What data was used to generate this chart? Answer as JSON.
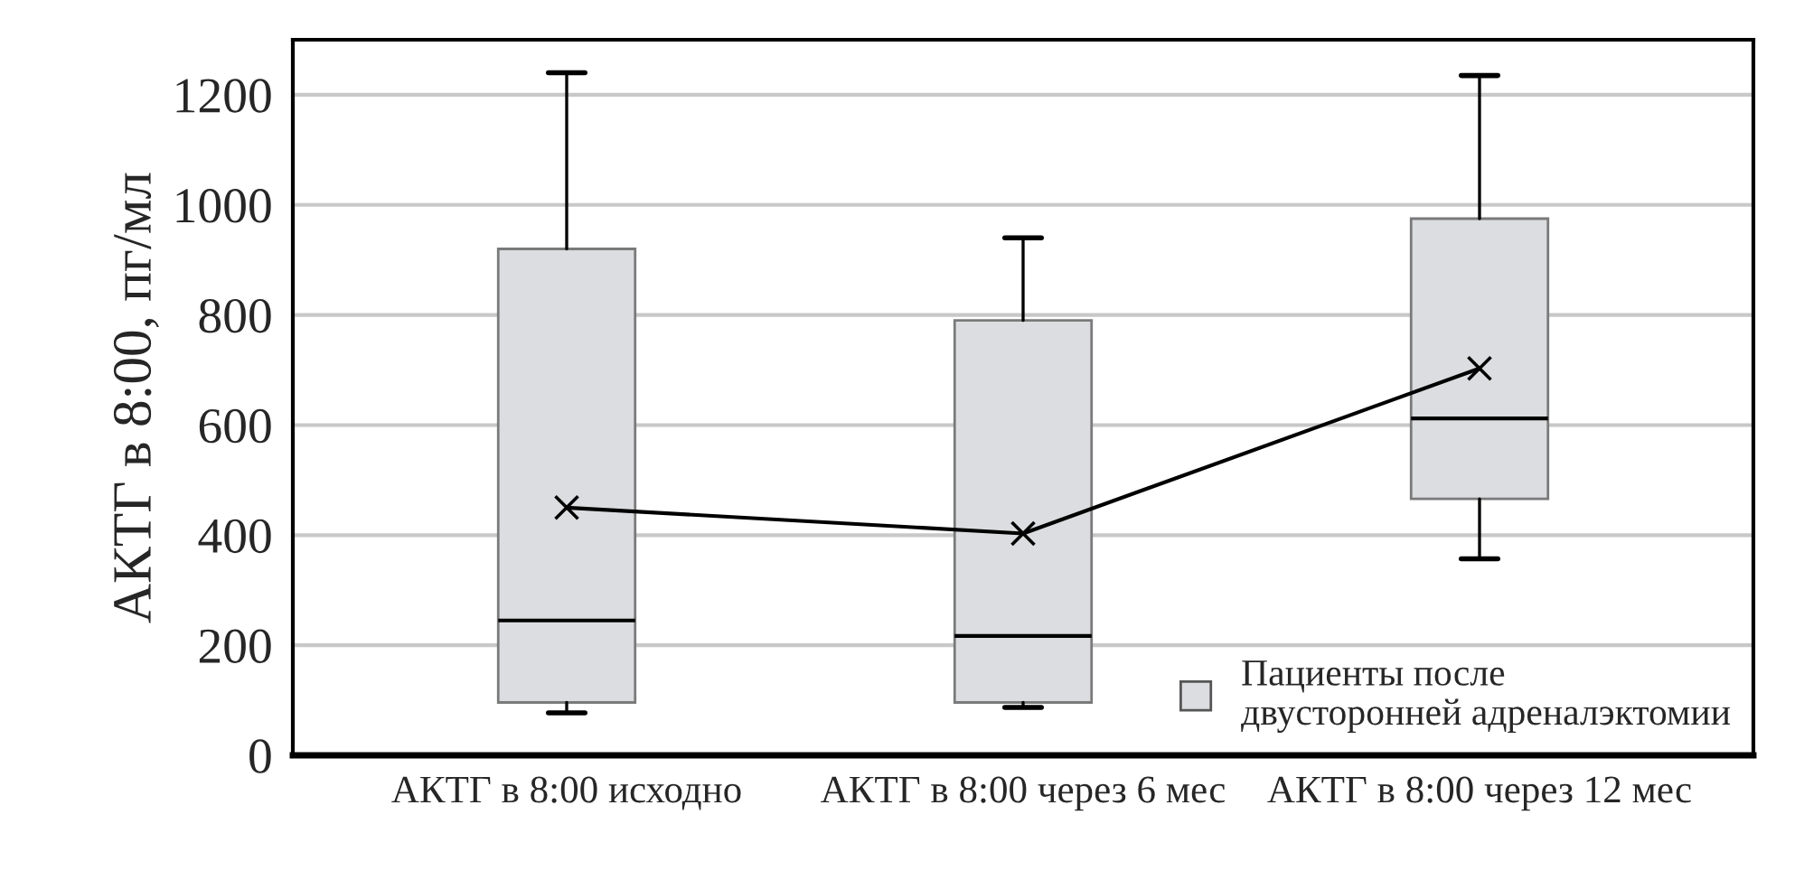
{
  "chart_data": {
    "type": "box",
    "ylabel": "АКТГ в 8:00, пг/мл",
    "categories": [
      "АКТГ в 8:00 исходно",
      "АКТГ в 8:00 через 6 мес",
      "АКТГ в 8:00 через 12 мес"
    ],
    "series": [
      {
        "name": "Пациенты после\nдвусторонней адреналэктомии",
        "color": "#dcdde0",
        "boxes": [
          {
            "low": 77,
            "q1": 96,
            "median": 245,
            "q3": 920,
            "high": 1240
          },
          {
            "low": 87,
            "q1": 96,
            "median": 217,
            "q3": 790,
            "high": 940
          },
          {
            "low": 357,
            "q1": 466,
            "median": 612,
            "q3": 975,
            "high": 1235
          }
        ]
      },
      {
        "type": "line",
        "color": "#000000",
        "marker": "cross",
        "values": [
          450,
          403,
          703
        ]
      }
    ],
    "ylim": [
      0,
      1300
    ],
    "yticks": [
      0,
      200,
      400,
      600,
      800,
      1000,
      1200
    ],
    "grid": "y",
    "legend": "bottom right"
  }
}
